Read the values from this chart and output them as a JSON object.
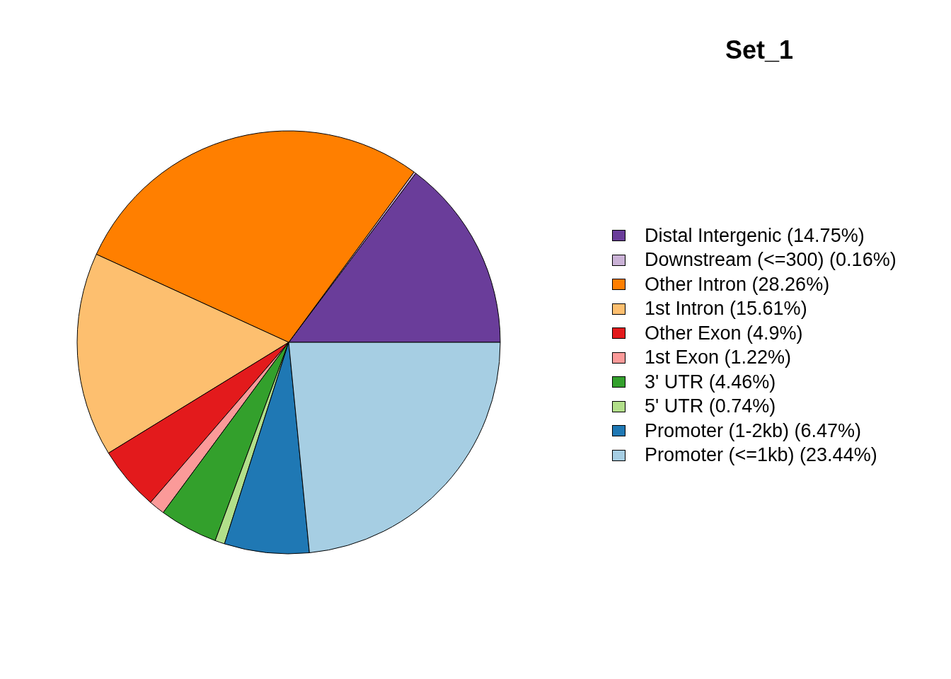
{
  "chart_data": {
    "type": "pie",
    "title": "Set_1",
    "categories": [
      "Distal Intergenic (14.75%)",
      "Downstream (<=300) (0.16%)",
      "Other Intron (28.26%)",
      "1st Intron (15.61%)",
      "Other Exon (4.9%)",
      "1st Exon (1.22%)",
      "3' UTR (4.46%)",
      "5' UTR (0.74%)",
      "Promoter (1-2kb) (6.47%)",
      "Promoter (<=1kb) (23.44%)"
    ],
    "values": [
      14.75,
      0.16,
      28.26,
      15.61,
      4.9,
      1.22,
      4.46,
      0.74,
      6.47,
      23.44
    ],
    "colors": [
      "#6a3d9a",
      "#cab2d6",
      "#ff7f00",
      "#fdbf6f",
      "#e31a1c",
      "#fb9a99",
      "#33a02c",
      "#b2df8a",
      "#1f78b4",
      "#a6cee3"
    ],
    "legend": "right"
  }
}
